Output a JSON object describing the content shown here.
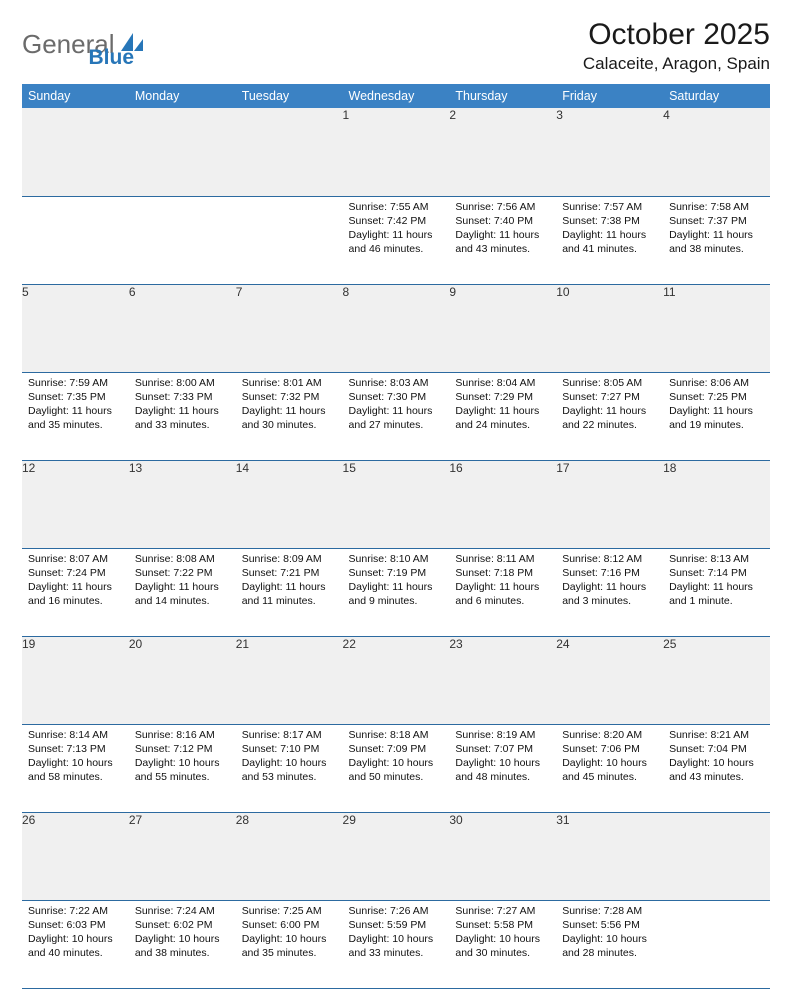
{
  "logo": {
    "word1": "General",
    "word2": "Blue"
  },
  "title": "October 2025",
  "location": "Calaceite, Aragon, Spain",
  "colors": {
    "header_blue": "#3b82c4",
    "row_blue": "#2c6aa0",
    "light_gray": "#f0f0f0",
    "logo_gray": "#6b6b6b",
    "logo_blue": "#2776b8"
  },
  "days_of_week": [
    "Sunday",
    "Monday",
    "Tuesday",
    "Wednesday",
    "Thursday",
    "Friday",
    "Saturday"
  ],
  "weeks": [
    [
      null,
      null,
      null,
      {
        "n": "1",
        "sr": "7:55 AM",
        "ss": "7:42 PM",
        "dl": "11 hours and 46 minutes."
      },
      {
        "n": "2",
        "sr": "7:56 AM",
        "ss": "7:40 PM",
        "dl": "11 hours and 43 minutes."
      },
      {
        "n": "3",
        "sr": "7:57 AM",
        "ss": "7:38 PM",
        "dl": "11 hours and 41 minutes."
      },
      {
        "n": "4",
        "sr": "7:58 AM",
        "ss": "7:37 PM",
        "dl": "11 hours and 38 minutes."
      }
    ],
    [
      {
        "n": "5",
        "sr": "7:59 AM",
        "ss": "7:35 PM",
        "dl": "11 hours and 35 minutes."
      },
      {
        "n": "6",
        "sr": "8:00 AM",
        "ss": "7:33 PM",
        "dl": "11 hours and 33 minutes."
      },
      {
        "n": "7",
        "sr": "8:01 AM",
        "ss": "7:32 PM",
        "dl": "11 hours and 30 minutes."
      },
      {
        "n": "8",
        "sr": "8:03 AM",
        "ss": "7:30 PM",
        "dl": "11 hours and 27 minutes."
      },
      {
        "n": "9",
        "sr": "8:04 AM",
        "ss": "7:29 PM",
        "dl": "11 hours and 24 minutes."
      },
      {
        "n": "10",
        "sr": "8:05 AM",
        "ss": "7:27 PM",
        "dl": "11 hours and 22 minutes."
      },
      {
        "n": "11",
        "sr": "8:06 AM",
        "ss": "7:25 PM",
        "dl": "11 hours and 19 minutes."
      }
    ],
    [
      {
        "n": "12",
        "sr": "8:07 AM",
        "ss": "7:24 PM",
        "dl": "11 hours and 16 minutes."
      },
      {
        "n": "13",
        "sr": "8:08 AM",
        "ss": "7:22 PM",
        "dl": "11 hours and 14 minutes."
      },
      {
        "n": "14",
        "sr": "8:09 AM",
        "ss": "7:21 PM",
        "dl": "11 hours and 11 minutes."
      },
      {
        "n": "15",
        "sr": "8:10 AM",
        "ss": "7:19 PM",
        "dl": "11 hours and 9 minutes."
      },
      {
        "n": "16",
        "sr": "8:11 AM",
        "ss": "7:18 PM",
        "dl": "11 hours and 6 minutes."
      },
      {
        "n": "17",
        "sr": "8:12 AM",
        "ss": "7:16 PM",
        "dl": "11 hours and 3 minutes."
      },
      {
        "n": "18",
        "sr": "8:13 AM",
        "ss": "7:14 PM",
        "dl": "11 hours and 1 minute."
      }
    ],
    [
      {
        "n": "19",
        "sr": "8:14 AM",
        "ss": "7:13 PM",
        "dl": "10 hours and 58 minutes."
      },
      {
        "n": "20",
        "sr": "8:16 AM",
        "ss": "7:12 PM",
        "dl": "10 hours and 55 minutes."
      },
      {
        "n": "21",
        "sr": "8:17 AM",
        "ss": "7:10 PM",
        "dl": "10 hours and 53 minutes."
      },
      {
        "n": "22",
        "sr": "8:18 AM",
        "ss": "7:09 PM",
        "dl": "10 hours and 50 minutes."
      },
      {
        "n": "23",
        "sr": "8:19 AM",
        "ss": "7:07 PM",
        "dl": "10 hours and 48 minutes."
      },
      {
        "n": "24",
        "sr": "8:20 AM",
        "ss": "7:06 PM",
        "dl": "10 hours and 45 minutes."
      },
      {
        "n": "25",
        "sr": "8:21 AM",
        "ss": "7:04 PM",
        "dl": "10 hours and 43 minutes."
      }
    ],
    [
      {
        "n": "26",
        "sr": "7:22 AM",
        "ss": "6:03 PM",
        "dl": "10 hours and 40 minutes."
      },
      {
        "n": "27",
        "sr": "7:24 AM",
        "ss": "6:02 PM",
        "dl": "10 hours and 38 minutes."
      },
      {
        "n": "28",
        "sr": "7:25 AM",
        "ss": "6:00 PM",
        "dl": "10 hours and 35 minutes."
      },
      {
        "n": "29",
        "sr": "7:26 AM",
        "ss": "5:59 PM",
        "dl": "10 hours and 33 minutes."
      },
      {
        "n": "30",
        "sr": "7:27 AM",
        "ss": "5:58 PM",
        "dl": "10 hours and 30 minutes."
      },
      {
        "n": "31",
        "sr": "7:28 AM",
        "ss": "5:56 PM",
        "dl": "10 hours and 28 minutes."
      },
      null
    ]
  ],
  "labels": {
    "sunrise": "Sunrise:",
    "sunset": "Sunset:",
    "daylight": "Daylight:"
  }
}
